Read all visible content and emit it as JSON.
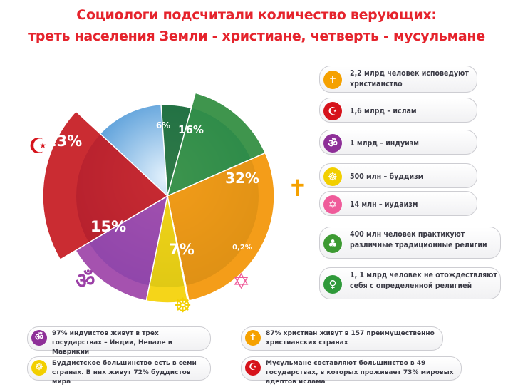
{
  "header": {
    "title_line1": "Социологи подсчитали количество верующих:",
    "title_line2": "треть населения Земли - христиане, четверть - мусульмане"
  },
  "chart_data": {
    "type": "pie",
    "slices": [
      {
        "label": "6%",
        "value": 6,
        "color": "#1b6b33"
      },
      {
        "label": "16%",
        "value": 16,
        "color": "#2a8a3a"
      },
      {
        "label": "32%",
        "value": 32,
        "color": "#f39200"
      },
      {
        "label": "0,2%",
        "value": 0.2,
        "color": "#ec4f8c"
      },
      {
        "label": "7%",
        "value": 7,
        "color": "#f4d000"
      },
      {
        "label": "15%",
        "value": 15,
        "color": "#9b3fa6"
      },
      {
        "label": "23%",
        "value": 23,
        "color": "#c4151c"
      }
    ],
    "inner_sky_color": "#3a8fd6"
  },
  "legend": [
    {
      "icon": "cross-icon",
      "color": "#f5a100",
      "text": "2,2 млрд человек исповедуют христианство"
    },
    {
      "icon": "crescent-icon",
      "color": "#d6131b",
      "text": "1,6 млрд – ислам"
    },
    {
      "icon": "om-icon",
      "color": "#8e2f98",
      "text": "1 млрд – индуизм"
    },
    {
      "icon": "dharma-wheel-icon",
      "color": "#f2cf00",
      "text": "500 млн – буддизм"
    },
    {
      "icon": "star-of-david-icon",
      "color": "#ef5b9a",
      "text": "14 млн – иудаизм"
    },
    {
      "icon": "tradition-icon",
      "color": "#3d9a32",
      "text": "400 млн человек практикуют различные традиционные религии"
    },
    {
      "icon": "person-icon",
      "color": "#2f9a3a",
      "text": "1, 1 млрд человек не отождествляют себя с определенной религией"
    }
  ],
  "facts": [
    {
      "icon": "om-icon",
      "color": "#8e2f98",
      "text": "97% индуистов живут в трех государствах – Индии, Непале и Маврикии"
    },
    {
      "icon": "cross-icon",
      "color": "#f5a100",
      "text": "87% христиан живут в 157 преимущественно христианских странах"
    },
    {
      "icon": "dharma-wheel-icon",
      "color": "#f2cf00",
      "text": "Буддистское большинство есть в семи странах. В них живут 72% буддистов мира"
    },
    {
      "icon": "crescent-icon",
      "color": "#d6131b",
      "text": "Мусульмане составляют большинство в 49 государствах, в которых проживает 73% мировых адептов ислама"
    }
  ]
}
